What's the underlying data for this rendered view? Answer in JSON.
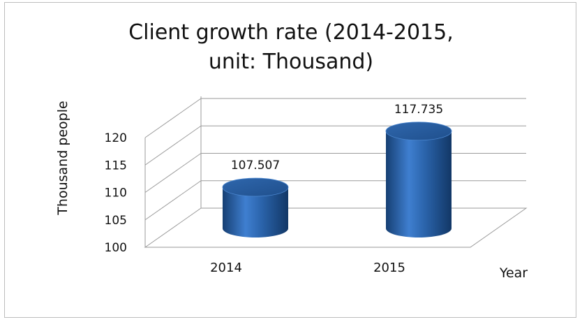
{
  "chart_data": {
    "type": "bar",
    "title_lines": [
      "Client growth rate (2014-2015,",
      "unit: Thousand)"
    ],
    "categories": [
      "2014",
      "2015"
    ],
    "values": [
      107.507,
      117.735
    ],
    "value_labels": [
      "107.507",
      "117.735"
    ],
    "ylabel": "Thousand people",
    "xlabel": "Year",
    "ylim": [
      100,
      120
    ],
    "yticks": [
      "100",
      "105",
      "110",
      "115",
      "120"
    ],
    "grid": true,
    "style": "3d-cylinder",
    "bar_color": "#2e6bb5"
  }
}
